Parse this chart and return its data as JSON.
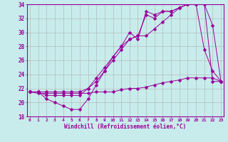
{
  "xlabel": "Windchill (Refroidissement éolien,°C)",
  "bg_color": "#c8ecec",
  "line_color": "#990099",
  "grid_color": "#b0b0b0",
  "xmin": 0,
  "xmax": 23,
  "ymin": 18,
  "ymax": 34,
  "series": [
    [
      21.5,
      21.5,
      20.5,
      20.0,
      19.5,
      19.0,
      19.0,
      20.5,
      22.5,
      24.5,
      26.5,
      28.0,
      30.0,
      29.0,
      33.0,
      32.5,
      33.0,
      33.0,
      33.5,
      34.0,
      34.0,
      27.5,
      24.5,
      23.0
    ],
    [
      21.5,
      21.5,
      21.0,
      21.0,
      21.0,
      21.0,
      21.0,
      22.0,
      23.5,
      25.0,
      26.5,
      28.0,
      29.0,
      29.5,
      32.5,
      32.0,
      33.0,
      33.0,
      33.5,
      34.0,
      34.0,
      34.0,
      23.0,
      23.0
    ],
    [
      21.5,
      21.5,
      21.5,
      21.5,
      21.5,
      21.5,
      21.5,
      22.0,
      23.0,
      24.5,
      26.0,
      27.5,
      29.0,
      29.5,
      29.5,
      30.5,
      31.5,
      32.5,
      33.5,
      34.0,
      34.0,
      34.0,
      31.0,
      23.0
    ],
    [
      21.5,
      21.3,
      21.3,
      21.3,
      21.3,
      21.3,
      21.3,
      21.3,
      21.5,
      21.5,
      21.5,
      21.8,
      22.0,
      22.0,
      22.2,
      22.5,
      22.8,
      23.0,
      23.2,
      23.5,
      23.5,
      23.5,
      23.5,
      23.0
    ]
  ],
  "xtick_labels": [
    "0",
    "1",
    "2",
    "3",
    "4",
    "5",
    "6",
    "7",
    "8",
    "9",
    "10",
    "11",
    "12",
    "13",
    "14",
    "15",
    "16",
    "17",
    "18",
    "19",
    "20",
    "21",
    "22",
    "23"
  ],
  "ytick_vals": [
    18,
    20,
    22,
    24,
    26,
    28,
    30,
    32,
    34
  ],
  "markersize": 2.5
}
